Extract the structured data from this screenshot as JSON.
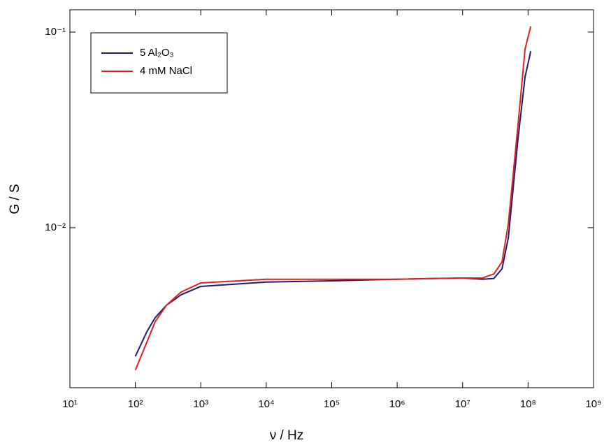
{
  "chart_data": {
    "type": "line",
    "x_label": "ν / Hz",
    "y_label": "G / S",
    "x": [
      100,
      150,
      200,
      300,
      500,
      1000,
      10000,
      100000,
      1000000,
      10000000,
      20000000,
      30000000,
      40000000,
      50000000,
      70000000,
      90000000,
      110000000
    ],
    "series": [
      {
        "name": "5 Al₂O₃",
        "color": "#1c1c7a",
        "values": [
          0.0022,
          0.00294,
          0.00346,
          0.00402,
          0.00454,
          0.00501,
          0.00527,
          0.00535,
          0.00545,
          0.00553,
          0.00545,
          0.0055,
          0.00616,
          0.0089,
          0.0282,
          0.059,
          0.08
        ]
      },
      {
        "name": "4 mM NaCl",
        "color": "#e0201e",
        "values": [
          0.00187,
          0.0026,
          0.0033,
          0.00402,
          0.00469,
          0.00522,
          0.00545,
          0.00545,
          0.00545,
          0.00553,
          0.00553,
          0.0058,
          0.00668,
          0.0105,
          0.0332,
          0.082,
          0.107
        ]
      }
    ],
    "xscale": "log",
    "yscale": "log",
    "xlim": [
      10,
      1000000000
    ],
    "ylim": [
      0.00152,
      0.13
    ],
    "xticks": [
      {
        "value": 10,
        "label": "10¹"
      },
      {
        "value": 100,
        "label": "10²"
      },
      {
        "value": 1000,
        "label": "10³"
      },
      {
        "value": 10000,
        "label": "10⁴"
      },
      {
        "value": 100000,
        "label": "10⁵"
      },
      {
        "value": 1000000,
        "label": "10⁶"
      },
      {
        "value": 10000000,
        "label": "10⁷"
      },
      {
        "value": 100000000,
        "label": "10⁸"
      },
      {
        "value": 1000000000,
        "label": "10⁹"
      }
    ],
    "yticks": [
      {
        "value": 0.01,
        "label": "10⁻²"
      },
      {
        "value": 0.1,
        "label": "10⁻¹"
      }
    ],
    "legend": "upper-left",
    "grid": false
  }
}
